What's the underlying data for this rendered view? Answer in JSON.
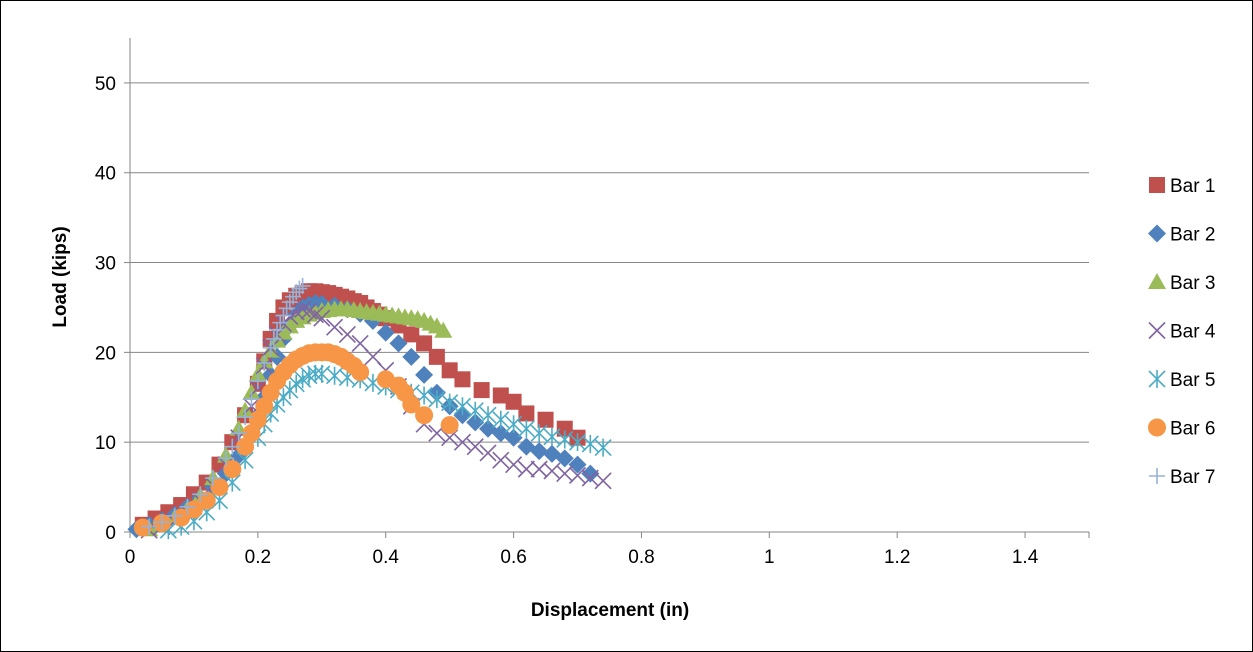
{
  "chart_data": {
    "type": "scatter",
    "title": "",
    "xlabel": "Displacement (in)",
    "ylabel": "Load (kips)",
    "xlim": [
      0,
      1.5
    ],
    "ylim": [
      0,
      55
    ],
    "x_ticks": [
      "0",
      "0.2",
      "0.4",
      "0.6",
      "0.8",
      "1",
      "1.2",
      "1.4"
    ],
    "x_tick_values": [
      0,
      0.2,
      0.4,
      0.6,
      0.8,
      1.0,
      1.2,
      1.4
    ],
    "y_ticks": [
      "0",
      "10",
      "20",
      "30",
      "40",
      "50"
    ],
    "y_tick_values": [
      0,
      10,
      20,
      30,
      40,
      50
    ],
    "grid": "horizontal",
    "legend_position": "right",
    "series": [
      {
        "name": "Bar 1",
        "marker": "square",
        "color": "#C0504D",
        "x": [
          0.02,
          0.04,
          0.06,
          0.08,
          0.1,
          0.12,
          0.14,
          0.16,
          0.18,
          0.2,
          0.21,
          0.22,
          0.23,
          0.24,
          0.25,
          0.26,
          0.27,
          0.28,
          0.29,
          0.3,
          0.31,
          0.32,
          0.33,
          0.34,
          0.35,
          0.36,
          0.37,
          0.38,
          0.39,
          0.4,
          0.42,
          0.44,
          0.46,
          0.48,
          0.5,
          0.52,
          0.55,
          0.58,
          0.6,
          0.62,
          0.65,
          0.68,
          0.7
        ],
        "y": [
          0.8,
          1.5,
          2.2,
          3,
          4.2,
          5.5,
          7.5,
          10,
          13,
          16.5,
          19,
          21.5,
          23.5,
          25,
          25.8,
          26.3,
          26.6,
          26.8,
          26.8,
          26.7,
          26.6,
          26.4,
          26.2,
          26,
          25.7,
          25.5,
          25,
          24.6,
          24.2,
          23.8,
          23,
          22,
          21,
          19.5,
          18,
          17,
          15.8,
          15.2,
          14.5,
          13.2,
          12.5,
          11.5,
          10.5
        ]
      },
      {
        "name": "Bar 2",
        "marker": "diamond",
        "color": "#4F81BD",
        "x": [
          0.01,
          0.03,
          0.05,
          0.07,
          0.09,
          0.11,
          0.13,
          0.15,
          0.17,
          0.19,
          0.2,
          0.21,
          0.22,
          0.23,
          0.24,
          0.25,
          0.26,
          0.27,
          0.28,
          0.29,
          0.3,
          0.32,
          0.34,
          0.36,
          0.38,
          0.4,
          0.42,
          0.44,
          0.46,
          0.48,
          0.5,
          0.52,
          0.54,
          0.56,
          0.58,
          0.6,
          0.62,
          0.64,
          0.66,
          0.68,
          0.7,
          0.72
        ],
        "y": [
          0.3,
          0.8,
          1.3,
          1.9,
          2.8,
          3.8,
          5,
          6.5,
          8.5,
          11,
          13,
          15,
          17.5,
          19.5,
          21.5,
          23,
          24.2,
          25,
          25.3,
          25.5,
          25.4,
          25.2,
          24.8,
          24.3,
          23.5,
          22.2,
          21,
          19.5,
          17.5,
          15.5,
          14,
          13,
          12.2,
          11.5,
          11,
          10.5,
          9.5,
          9,
          8.7,
          8.2,
          7.5,
          6.5
        ]
      },
      {
        "name": "Bar 3",
        "marker": "triangle",
        "color": "#9BBB59",
        "x": [
          0.03,
          0.05,
          0.07,
          0.09,
          0.11,
          0.13,
          0.15,
          0.17,
          0.18,
          0.19,
          0.2,
          0.21,
          0.22,
          0.23,
          0.24,
          0.25,
          0.26,
          0.27,
          0.28,
          0.29,
          0.3,
          0.31,
          0.32,
          0.33,
          0.34,
          0.35,
          0.36,
          0.37,
          0.38,
          0.39,
          0.4,
          0.41,
          0.42,
          0.43,
          0.44,
          0.45,
          0.46,
          0.47,
          0.48,
          0.49
        ],
        "y": [
          0.3,
          0.8,
          1.6,
          2.6,
          4,
          6,
          8.5,
          11.5,
          13.5,
          15.5,
          17.5,
          19,
          20.2,
          21.3,
          22.2,
          22.9,
          23.5,
          23.9,
          24.2,
          24.4,
          24.6,
          24.7,
          24.8,
          24.8,
          24.8,
          24.7,
          24.6,
          24.5,
          24.4,
          24.3,
          24.2,
          24.1,
          24,
          23.9,
          23.8,
          23.7,
          23.5,
          23.2,
          22.9,
          22.4
        ]
      },
      {
        "name": "Bar 4",
        "marker": "x",
        "color": "#8064A2",
        "x": [
          0.03,
          0.05,
          0.07,
          0.09,
          0.11,
          0.13,
          0.15,
          0.17,
          0.19,
          0.2,
          0.21,
          0.22,
          0.23,
          0.24,
          0.25,
          0.26,
          0.27,
          0.28,
          0.29,
          0.3,
          0.32,
          0.34,
          0.36,
          0.38,
          0.4,
          0.42,
          0.44,
          0.46,
          0.48,
          0.5,
          0.52,
          0.54,
          0.56,
          0.58,
          0.6,
          0.62,
          0.64,
          0.66,
          0.68,
          0.7,
          0.72,
          0.74
        ],
        "y": [
          0.2,
          0.6,
          1.2,
          2.2,
          3.5,
          5.2,
          7.5,
          10.5,
          14,
          16,
          18.5,
          20.5,
          22,
          23.2,
          24,
          24.5,
          24.8,
          24.6,
          24.2,
          23.8,
          22.8,
          22,
          21,
          19.5,
          18,
          16.2,
          14,
          12,
          11,
          10.5,
          10,
          9.5,
          8.8,
          8,
          7.5,
          7,
          7,
          6.8,
          6.5,
          6.3,
          6,
          5.7
        ]
      },
      {
        "name": "Bar 5",
        "marker": "star",
        "color": "#4BACC6",
        "x": [
          0.06,
          0.08,
          0.1,
          0.12,
          0.14,
          0.16,
          0.18,
          0.2,
          0.21,
          0.22,
          0.23,
          0.24,
          0.25,
          0.26,
          0.27,
          0.28,
          0.29,
          0.3,
          0.32,
          0.34,
          0.36,
          0.38,
          0.4,
          0.42,
          0.44,
          0.46,
          0.48,
          0.5,
          0.52,
          0.54,
          0.56,
          0.58,
          0.6,
          0.62,
          0.64,
          0.66,
          0.68,
          0.7,
          0.72,
          0.74
        ],
        "y": [
          0.2,
          0.6,
          1.2,
          2.2,
          3.5,
          5.5,
          8,
          10.5,
          12,
          13.2,
          14.2,
          15,
          15.8,
          16.5,
          17,
          17.4,
          17.6,
          17.6,
          17.4,
          17.2,
          17,
          16.6,
          16.2,
          15.8,
          15.5,
          15.2,
          14.8,
          14.4,
          14,
          13.5,
          13,
          12.5,
          12,
          11.5,
          11,
          10.6,
          10.3,
          10,
          9.8,
          9.4
        ]
      },
      {
        "name": "Bar 6",
        "marker": "circle",
        "color": "#F79646",
        "x": [
          0.02,
          0.05,
          0.08,
          0.1,
          0.12,
          0.14,
          0.16,
          0.18,
          0.19,
          0.2,
          0.21,
          0.22,
          0.23,
          0.24,
          0.25,
          0.26,
          0.27,
          0.28,
          0.29,
          0.3,
          0.31,
          0.32,
          0.33,
          0.34,
          0.35,
          0.36,
          0.4,
          0.42,
          0.43,
          0.44,
          0.46,
          0.5
        ],
        "y": [
          0.5,
          1,
          1.6,
          2.5,
          3.5,
          5,
          7,
          9.5,
          11,
          12.5,
          14,
          15.5,
          16.8,
          17.8,
          18.6,
          19.2,
          19.6,
          19.9,
          20,
          20,
          20,
          19.8,
          19.5,
          19,
          18.5,
          17.8,
          17,
          16.3,
          15.5,
          14.2,
          13,
          11.9
        ]
      },
      {
        "name": "Bar 7",
        "marker": "plus",
        "color": "#95B3D7",
        "x": [
          0.03,
          0.05,
          0.07,
          0.09,
          0.11,
          0.13,
          0.15,
          0.16,
          0.17,
          0.18,
          0.19,
          0.2,
          0.21,
          0.22,
          0.225,
          0.23,
          0.235,
          0.24,
          0.245,
          0.25,
          0.255,
          0.26,
          0.265,
          0.27
        ],
        "y": [
          0.6,
          1.1,
          1.8,
          2.8,
          4.2,
          6,
          8.2,
          9.5,
          11,
          12.8,
          14.8,
          16.8,
          18.8,
          20.5,
          21.5,
          22.5,
          23.3,
          24.1,
          24.9,
          25.6,
          26.2,
          26.7,
          27.1,
          27.4
        ]
      }
    ]
  }
}
